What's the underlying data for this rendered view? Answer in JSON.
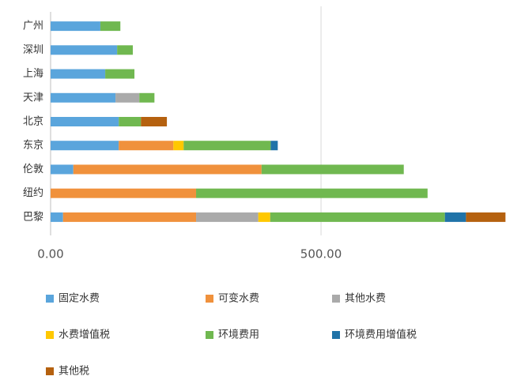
{
  "chart_data": {
    "type": "stacked-barh",
    "categories": [
      "广州",
      "深圳",
      "上海",
      "天津",
      "北京",
      "东京",
      "伦敦",
      "纽约",
      "巴黎"
    ],
    "series": [
      {
        "name": "固定水费",
        "color": "#5aa5dc",
        "values": [
          92,
          123,
          101,
          120,
          126,
          126,
          42,
          null,
          23
        ]
      },
      {
        "name": "可变水费",
        "color": "#f0913c",
        "values": [
          null,
          null,
          null,
          null,
          null,
          101,
          348,
          269,
          246
        ]
      },
      {
        "name": "其他水费",
        "color": "#aaaaaa",
        "values": [
          null,
          null,
          null,
          44,
          null,
          null,
          null,
          null,
          115
        ]
      },
      {
        "name": "水费增值税",
        "color": "#ffc800",
        "values": [
          null,
          null,
          null,
          null,
          null,
          19,
          null,
          null,
          22
        ]
      },
      {
        "name": "环境费用",
        "color": "#70b850",
        "values": [
          37,
          29,
          54,
          28,
          41,
          161,
          263,
          428,
          323
        ]
      },
      {
        "name": "环境费用增值税",
        "color": "#2073a8",
        "values": [
          null,
          null,
          null,
          null,
          null,
          13,
          null,
          null,
          39
        ]
      },
      {
        "name": "其他税",
        "color": "#b5610f",
        "values": [
          null,
          null,
          null,
          null,
          48,
          null,
          null,
          null,
          73
        ]
      }
    ],
    "xlim": [
      0,
      842
    ],
    "xticks": [
      {
        "value": 0,
        "label": "0.00"
      },
      {
        "value": 500,
        "label": "500.00"
      }
    ],
    "grid": true
  }
}
